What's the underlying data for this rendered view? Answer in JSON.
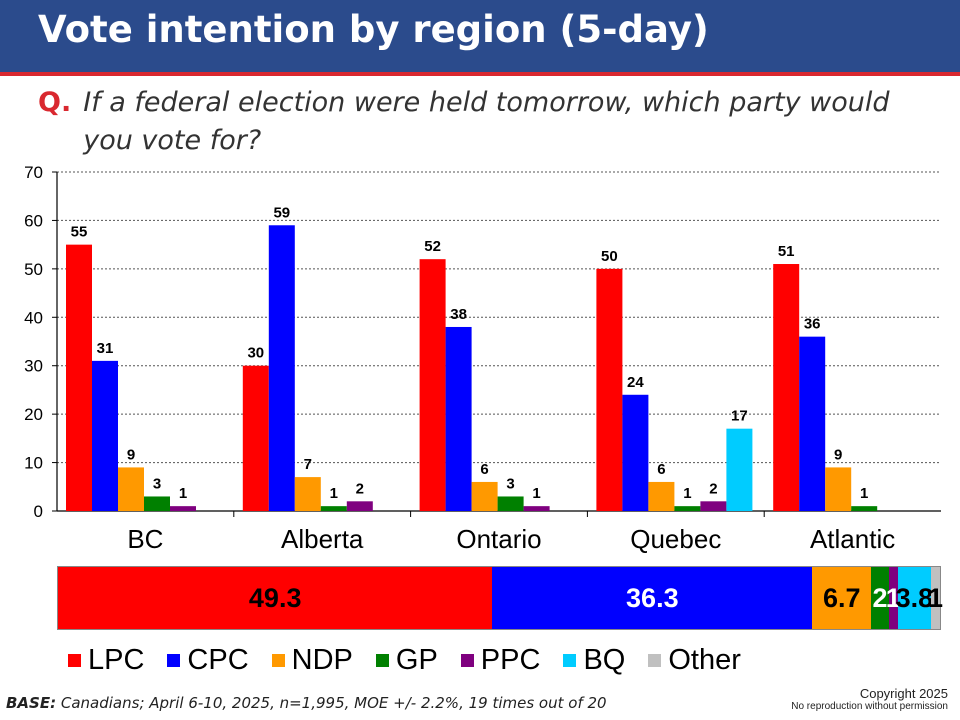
{
  "title": "Vote intention by region (5-day)",
  "question": {
    "label": "Q.",
    "text": "If a federal election were held tomorrow, which party would you vote for?"
  },
  "chart_data": [
    {
      "type": "bar",
      "title": "",
      "categories": [
        "BC",
        "Alberta",
        "Ontario",
        "Quebec",
        "Atlantic"
      ],
      "ylim": [
        0,
        70
      ],
      "yticks": [
        0,
        10,
        20,
        30,
        40,
        50,
        60,
        70
      ],
      "grid": true,
      "series": [
        {
          "name": "LPC",
          "color": "#ff0000",
          "values": [
            55,
            30,
            52,
            50,
            51
          ],
          "labels": [
            "55",
            "30",
            "52",
            "50",
            "51"
          ]
        },
        {
          "name": "CPC",
          "color": "#0000ff",
          "values": [
            31,
            59,
            38,
            24,
            36
          ],
          "labels": [
            "31",
            "59",
            "38",
            "24",
            "36"
          ]
        },
        {
          "name": "NDP",
          "color": "#ff9900",
          "values": [
            9,
            7,
            6,
            6,
            9
          ],
          "labels": [
            "9",
            "7",
            "6",
            "6",
            "9"
          ]
        },
        {
          "name": "GP",
          "color": "#008000",
          "values": [
            3,
            1,
            3,
            1,
            1
          ],
          "labels": [
            "3",
            "1",
            "3",
            "1",
            "1"
          ]
        },
        {
          "name": "PPC",
          "color": "#7f007f",
          "values": [
            1,
            2,
            1,
            2,
            null
          ],
          "labels": [
            "1",
            "2",
            "1",
            "2",
            ""
          ]
        },
        {
          "name": "BQ",
          "color": "#00ccff",
          "values": [
            null,
            null,
            null,
            17,
            null
          ],
          "labels": [
            "",
            "",
            "",
            "17",
            ""
          ]
        }
      ]
    },
    {
      "type": "bar",
      "orientation": "horizontal-stacked",
      "title": "",
      "segments": [
        {
          "name": "LPC",
          "color": "#ff0000",
          "value": 49.3,
          "label": "49.3",
          "text_color": "#000000"
        },
        {
          "name": "CPC",
          "color": "#0000ff",
          "value": 36.3,
          "label": "36.3",
          "text_color": "#ffffff"
        },
        {
          "name": "NDP",
          "color": "#ff9900",
          "value": 6.7,
          "label": "6.7",
          "text_color": "#000000"
        },
        {
          "name": "GP",
          "color": "#008000",
          "value": 2,
          "label": "2",
          "text_color": "#ffffff"
        },
        {
          "name": "PPC",
          "color": "#7f007f",
          "value": 1,
          "label": "1",
          "text_color": "#ffffff"
        },
        {
          "name": "BQ",
          "color": "#00ccff",
          "value": 3.8,
          "label": "3.8",
          "text_color": "#000000"
        },
        {
          "name": "Other",
          "color": "#c0c0c0",
          "value": 1,
          "label": "1",
          "text_color": "#000000"
        }
      ]
    }
  ],
  "legend": [
    {
      "label": "LPC",
      "color": "#ff0000"
    },
    {
      "label": "CPC",
      "color": "#0000ff"
    },
    {
      "label": "NDP",
      "color": "#ff9900"
    },
    {
      "label": "GP",
      "color": "#008000"
    },
    {
      "label": "PPC",
      "color": "#7f007f"
    },
    {
      "label": "BQ",
      "color": "#00ccff"
    },
    {
      "label": "Other",
      "color": "#c0c0c0"
    }
  ],
  "footer": {
    "base_label": "BASE:",
    "base_text": "Canadians; April 6-10, 2025, n=1,995, MOE +/- 2.2%, 19 times out of 20",
    "copyright": "Copyright 2025",
    "reproduction": "No reproduction without permission"
  }
}
